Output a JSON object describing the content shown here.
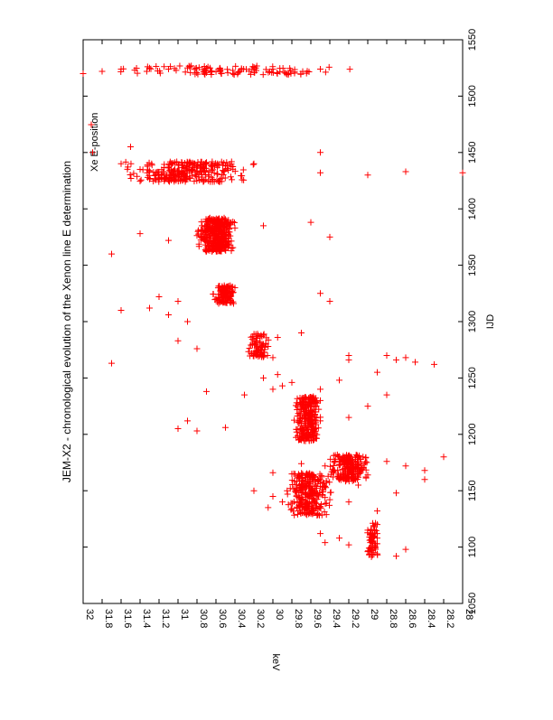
{
  "chart_data": {
    "type": "scatter",
    "title": "JEM-X2 -  chronological evolution of the Xenon line E determination",
    "xlabel": "IJD",
    "ylabel": "keV",
    "xlim": [
      1050,
      1550
    ],
    "ylim": [
      28,
      32
    ],
    "x_ticks": [
      "1050",
      "1100",
      "1150",
      "1200",
      "1250",
      "1300",
      "1350",
      "1400",
      "1450",
      "1500",
      "1550"
    ],
    "y_ticks": [
      "28",
      "28.2",
      "28.4",
      "28.6",
      "28.8",
      "29",
      "29.2",
      "29.4",
      "29.6",
      "29.8",
      "30",
      "30.2",
      "30.4",
      "30.6",
      "30.8",
      "31",
      "31.2",
      "31.4",
      "31.6",
      "31.8",
      "32"
    ],
    "grid": false,
    "legend_position": "top-right",
    "rotation": "page rotated 90 degrees counter-clockwise",
    "marker": "plus",
    "series": [
      {
        "name": "Xe E-position",
        "color": "#ff0000",
        "points": [
          [
            1094,
            28.9
          ],
          [
            1096,
            29.0
          ],
          [
            1098,
            28.95
          ],
          [
            1100,
            28.92
          ],
          [
            1103,
            28.9
          ],
          [
            1106,
            28.98
          ],
          [
            1108,
            28.9
          ],
          [
            1110,
            28.94
          ],
          [
            1112,
            28.9
          ],
          [
            1115,
            29.0
          ],
          [
            1118,
            28.93
          ],
          [
            1120,
            28.9
          ],
          [
            1108,
            29.3
          ],
          [
            1112,
            29.5
          ],
          [
            1102,
            29.2
          ],
          [
            1104,
            29.45
          ],
          [
            1098,
            28.6
          ],
          [
            1092,
            28.7
          ],
          [
            1130,
            29.6
          ],
          [
            1134,
            29.8
          ],
          [
            1136,
            29.5
          ],
          [
            1138,
            29.7
          ],
          [
            1140,
            29.9
          ],
          [
            1142,
            29.4
          ],
          [
            1144,
            29.65
          ],
          [
            1146,
            29.75
          ],
          [
            1148,
            29.55
          ],
          [
            1150,
            29.85
          ],
          [
            1152,
            29.6
          ],
          [
            1154,
            29.45
          ],
          [
            1156,
            29.7
          ],
          [
            1158,
            29.5
          ],
          [
            1160,
            29.3
          ],
          [
            1162,
            29.6
          ],
          [
            1145,
            30.0
          ],
          [
            1150,
            30.2
          ],
          [
            1135,
            30.05
          ],
          [
            1140,
            29.2
          ],
          [
            1155,
            29.1
          ],
          [
            1148,
            28.7
          ],
          [
            1132,
            28.9
          ],
          [
            1160,
            28.4
          ],
          [
            1162,
            29.1
          ],
          [
            1164,
            29.0
          ],
          [
            1166,
            29.25
          ],
          [
            1168,
            29.35
          ],
          [
            1170,
            29.15
          ],
          [
            1172,
            29.45
          ],
          [
            1174,
            29.1
          ],
          [
            1176,
            29.3
          ],
          [
            1178,
            29.2
          ],
          [
            1180,
            29.05
          ],
          [
            1172,
            28.6
          ],
          [
            1176,
            28.8
          ],
          [
            1168,
            28.4
          ],
          [
            1180,
            28.2
          ],
          [
            1174,
            29.7
          ],
          [
            1166,
            30.0
          ],
          [
            1195,
            29.7
          ],
          [
            1198,
            29.6
          ],
          [
            1200,
            29.65
          ],
          [
            1202,
            29.75
          ],
          [
            1205,
            29.55
          ],
          [
            1208,
            29.6
          ],
          [
            1210,
            29.7
          ],
          [
            1212,
            29.5
          ],
          [
            1215,
            29.65
          ],
          [
            1218,
            29.6
          ],
          [
            1220,
            29.55
          ],
          [
            1222,
            29.7
          ],
          [
            1225,
            29.6
          ],
          [
            1228,
            29.75
          ],
          [
            1230,
            29.5
          ],
          [
            1232,
            29.65
          ],
          [
            1206,
            30.5
          ],
          [
            1212,
            30.9
          ],
          [
            1203,
            30.8
          ],
          [
            1205,
            31.0
          ],
          [
            1215,
            29.2
          ],
          [
            1225,
            29.0
          ],
          [
            1235,
            28.8
          ],
          [
            1240,
            30.0
          ],
          [
            1243,
            29.9
          ],
          [
            1246,
            29.8
          ],
          [
            1250,
            30.1
          ],
          [
            1253,
            29.95
          ],
          [
            1240,
            29.5
          ],
          [
            1248,
            29.3
          ],
          [
            1235,
            30.3
          ],
          [
            1255,
            28.9
          ],
          [
            1238,
            30.7
          ],
          [
            1262,
            28.3
          ],
          [
            1264,
            28.5
          ],
          [
            1266,
            28.7
          ],
          [
            1268,
            28.6
          ],
          [
            1270,
            28.8
          ],
          [
            1266,
            29.2
          ],
          [
            1263,
            31.7
          ],
          [
            1268,
            30.0
          ],
          [
            1272,
            30.2
          ],
          [
            1275,
            30.15
          ],
          [
            1278,
            30.05
          ],
          [
            1280,
            30.1
          ],
          [
            1283,
            30.2
          ],
          [
            1286,
            29.95
          ],
          [
            1288,
            30.1
          ],
          [
            1276,
            30.8
          ],
          [
            1283,
            31.0
          ],
          [
            1290,
            29.7
          ],
          [
            1270,
            29.2
          ],
          [
            1300,
            30.9
          ],
          [
            1306,
            31.1
          ],
          [
            1310,
            31.6
          ],
          [
            1312,
            31.3
          ],
          [
            1318,
            31.0
          ],
          [
            1320,
            30.6
          ],
          [
            1322,
            30.45
          ],
          [
            1325,
            30.5
          ],
          [
            1328,
            30.55
          ],
          [
            1330,
            30.4
          ],
          [
            1322,
            31.2
          ],
          [
            1318,
            29.4
          ],
          [
            1325,
            29.5
          ],
          [
            1360,
            31.7
          ],
          [
            1365,
            30.7
          ],
          [
            1370,
            30.5
          ],
          [
            1373,
            30.6
          ],
          [
            1376,
            30.45
          ],
          [
            1380,
            30.55
          ],
          [
            1383,
            30.4
          ],
          [
            1386,
            30.6
          ],
          [
            1378,
            31.4
          ],
          [
            1372,
            31.1
          ],
          [
            1385,
            30.1
          ],
          [
            1388,
            29.6
          ],
          [
            1375,
            29.4
          ],
          [
            1425,
            31.1
          ],
          [
            1428,
            31.2
          ],
          [
            1430,
            31.0
          ],
          [
            1432,
            30.8
          ],
          [
            1433,
            31.3
          ],
          [
            1435,
            31.4
          ],
          [
            1437,
            31.1
          ],
          [
            1438,
            30.5
          ],
          [
            1440,
            30.2
          ],
          [
            1432,
            29.5
          ],
          [
            1430,
            29.0
          ],
          [
            1433,
            28.6
          ],
          [
            1432,
            28.0
          ],
          [
            1440,
            31.6
          ],
          [
            1450,
            31.9
          ],
          [
            1455,
            31.5
          ],
          [
            1450,
            29.5
          ],
          [
            1520,
            32.0
          ],
          [
            1522,
            31.8
          ],
          [
            1524,
            31.6
          ],
          [
            1525,
            31.3
          ],
          [
            1524,
            31.1
          ],
          [
            1525,
            30.9
          ],
          [
            1524,
            30.0
          ],
          [
            1524,
            29.5
          ]
        ]
      }
    ],
    "bands": [
      {
        "x": [
          1090,
          1122
        ],
        "y": [
          28.88,
          29.02
        ],
        "n": 55
      },
      {
        "x": [
          1128,
          1166
        ],
        "y": [
          29.35,
          29.9
        ],
        "n": 260
      },
      {
        "x": [
          1158,
          1182
        ],
        "y": [
          28.95,
          29.45
        ],
        "n": 200
      },
      {
        "x": [
          1194,
          1234
        ],
        "y": [
          29.45,
          29.8
        ],
        "n": 240
      },
      {
        "x": [
          1268,
          1290
        ],
        "y": [
          30.0,
          30.3
        ],
        "n": 70
      },
      {
        "x": [
          1316,
          1332
        ],
        "y": [
          30.35,
          30.65
        ],
        "n": 110
      },
      {
        "x": [
          1362,
          1392
        ],
        "y": [
          30.35,
          30.85
        ],
        "n": 380
      },
      {
        "x": [
          1424,
          1442
        ],
        "y": [
          30.1,
          31.7
        ],
        "n": 280
      },
      {
        "x": [
          1519,
          1527
        ],
        "y": [
          29.0,
          32.0
        ],
        "n": 110
      }
    ]
  }
}
